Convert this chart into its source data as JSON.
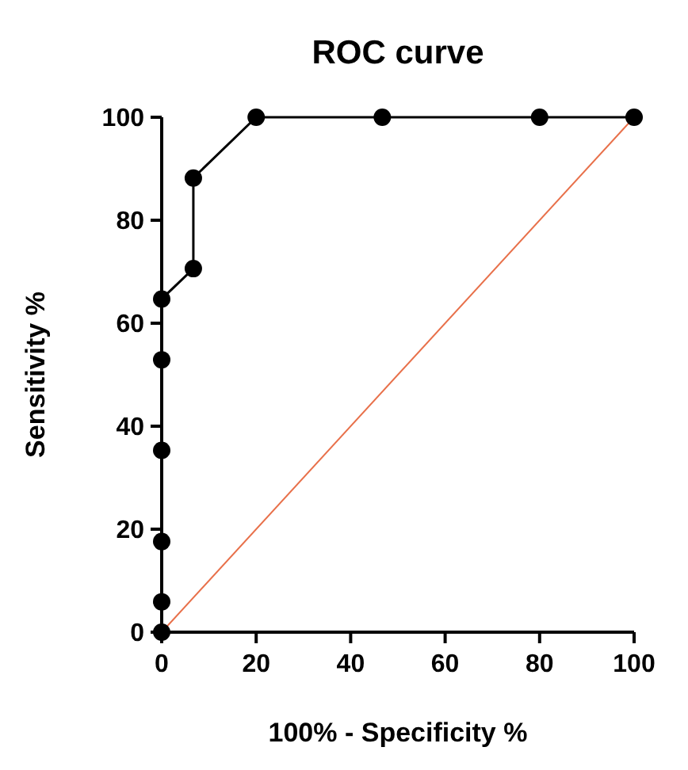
{
  "chart_data": {
    "type": "line",
    "title": "ROC curve",
    "xlabel": "100% - Specificity %",
    "ylabel": "Sensitivity %",
    "xlim": [
      0,
      100
    ],
    "ylim": [
      0,
      100
    ],
    "xticks": [
      0,
      20,
      40,
      60,
      80,
      100
    ],
    "yticks": [
      0,
      20,
      40,
      60,
      80,
      100
    ],
    "grid": false,
    "marker": "circle",
    "series": [
      {
        "color": "#000000",
        "x": [
          0,
          0,
          0,
          0,
          0,
          0,
          6.7,
          6.7,
          20,
          46.7,
          80,
          100
        ],
        "values": [
          0,
          5.9,
          17.6,
          35.3,
          52.9,
          64.7,
          70.6,
          88.2,
          100,
          100,
          100,
          100
        ]
      },
      {
        "color": "#e8704a",
        "marker": "none",
        "x": [
          0,
          100
        ],
        "values": [
          0,
          100
        ]
      }
    ]
  }
}
